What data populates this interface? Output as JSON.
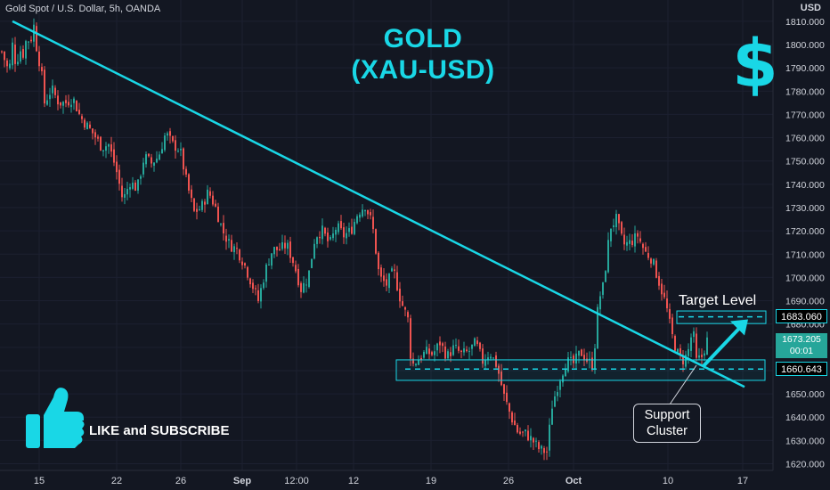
{
  "header": {
    "symbol_line": "Gold Spot / U.S. Dollar, 5h, OANDA",
    "currency": "USD"
  },
  "title": {
    "line1": "GOLD",
    "line2": "(XAU-USD)"
  },
  "annotations": {
    "target_label": "Target Level",
    "support_label_line1": "Support",
    "support_label_line2": "Cluster",
    "like_subscribe": "LIKE and SUBSCRIBE"
  },
  "price_tags": {
    "target": "1683.060",
    "last_price": "1673.205",
    "countdown": "00:01",
    "support": "1660.643"
  },
  "icons": [
    "dollar-sign-icon",
    "thumbs-up-icon"
  ],
  "colors": {
    "background": "#131722",
    "bull": "#26a69a",
    "bear": "#ef5350",
    "accent": "#19d7e6",
    "text": "#d1d4dc"
  },
  "chart_data": {
    "type": "candlestick",
    "ylim": [
      1617,
      1814
    ],
    "yticks": [
      1810,
      1800,
      1790,
      1780,
      1770,
      1760,
      1750,
      1740,
      1730,
      1720,
      1710,
      1700,
      1690,
      1680,
      1670,
      1660,
      1650,
      1640,
      1630,
      1620
    ],
    "xtick_labels": [
      "15",
      "22",
      "26",
      "Sep",
      "12:00",
      "12",
      "19",
      "26",
      "Oct",
      "10",
      "17"
    ],
    "close_path": [
      [
        0,
        1797
      ],
      [
        8,
        1788
      ],
      [
        12,
        1800
      ],
      [
        16,
        1791
      ],
      [
        20,
        1798
      ],
      [
        24,
        1796
      ],
      [
        28,
        1803
      ],
      [
        32,
        1801
      ],
      [
        36,
        1808
      ],
      [
        40,
        1796
      ],
      [
        44,
        1790
      ],
      [
        48,
        1775
      ],
      [
        56,
        1781
      ],
      [
        64,
        1775
      ],
      [
        72,
        1775
      ],
      [
        80,
        1777
      ],
      [
        88,
        1769
      ],
      [
        96,
        1765
      ],
      [
        104,
        1761
      ],
      [
        112,
        1756
      ],
      [
        120,
        1757
      ],
      [
        128,
        1747
      ],
      [
        136,
        1733
      ],
      [
        144,
        1741
      ],
      [
        152,
        1738
      ],
      [
        160,
        1752
      ],
      [
        168,
        1749
      ],
      [
        176,
        1752
      ],
      [
        184,
        1762
      ],
      [
        192,
        1757
      ],
      [
        200,
        1755
      ],
      [
        208,
        1740
      ],
      [
        216,
        1728
      ],
      [
        224,
        1730
      ],
      [
        232,
        1737
      ],
      [
        240,
        1730
      ],
      [
        248,
        1720
      ],
      [
        256,
        1714
      ],
      [
        264,
        1712
      ],
      [
        272,
        1706
      ],
      [
        280,
        1698
      ],
      [
        288,
        1690
      ],
      [
        296,
        1703
      ],
      [
        304,
        1712
      ],
      [
        312,
        1712
      ],
      [
        320,
        1714
      ],
      [
        328,
        1706
      ],
      [
        336,
        1695
      ],
      [
        344,
        1700
      ],
      [
        352,
        1718
      ],
      [
        360,
        1720
      ],
      [
        368,
        1714
      ],
      [
        376,
        1722
      ],
      [
        384,
        1718
      ],
      [
        392,
        1720
      ],
      [
        400,
        1728
      ],
      [
        408,
        1731
      ],
      [
        416,
        1723
      ],
      [
        424,
        1700
      ],
      [
        432,
        1697
      ],
      [
        440,
        1703
      ],
      [
        448,
        1690
      ],
      [
        456,
        1682
      ],
      [
        460,
        1662
      ],
      [
        468,
        1665
      ],
      [
        476,
        1668
      ],
      [
        484,
        1667
      ],
      [
        492,
        1672
      ],
      [
        500,
        1666
      ],
      [
        508,
        1670
      ],
      [
        516,
        1667
      ],
      [
        524,
        1668
      ],
      [
        532,
        1672
      ],
      [
        540,
        1664
      ],
      [
        548,
        1668
      ],
      [
        556,
        1662
      ],
      [
        564,
        1649
      ],
      [
        572,
        1640
      ],
      [
        580,
        1633
      ],
      [
        588,
        1633
      ],
      [
        596,
        1630
      ],
      [
        604,
        1626
      ],
      [
        612,
        1625
      ],
      [
        618,
        1645
      ],
      [
        626,
        1656
      ],
      [
        634,
        1664
      ],
      [
        642,
        1663
      ],
      [
        650,
        1668
      ],
      [
        656,
        1665
      ],
      [
        664,
        1662
      ],
      [
        670,
        1690
      ],
      [
        676,
        1697
      ],
      [
        680,
        1712
      ],
      [
        684,
        1722
      ],
      [
        690,
        1725
      ],
      [
        698,
        1714
      ],
      [
        706,
        1715
      ],
      [
        714,
        1718
      ],
      [
        722,
        1711
      ],
      [
        730,
        1708
      ],
      [
        738,
        1698
      ],
      [
        746,
        1688
      ],
      [
        752,
        1676
      ],
      [
        758,
        1668
      ],
      [
        764,
        1664
      ],
      [
        770,
        1667
      ],
      [
        776,
        1678
      ],
      [
        780,
        1664
      ],
      [
        786,
        1666
      ],
      [
        792,
        1673
      ]
    ],
    "trendline": {
      "from": [
        "15 (start)",
        1810
      ],
      "to": [
        "17",
        1653
      ]
    },
    "target_level": 1683.06,
    "support_level": 1660.643,
    "last_price": 1673.205,
    "projection_arrow": {
      "from": 1662,
      "to": 1682
    }
  }
}
